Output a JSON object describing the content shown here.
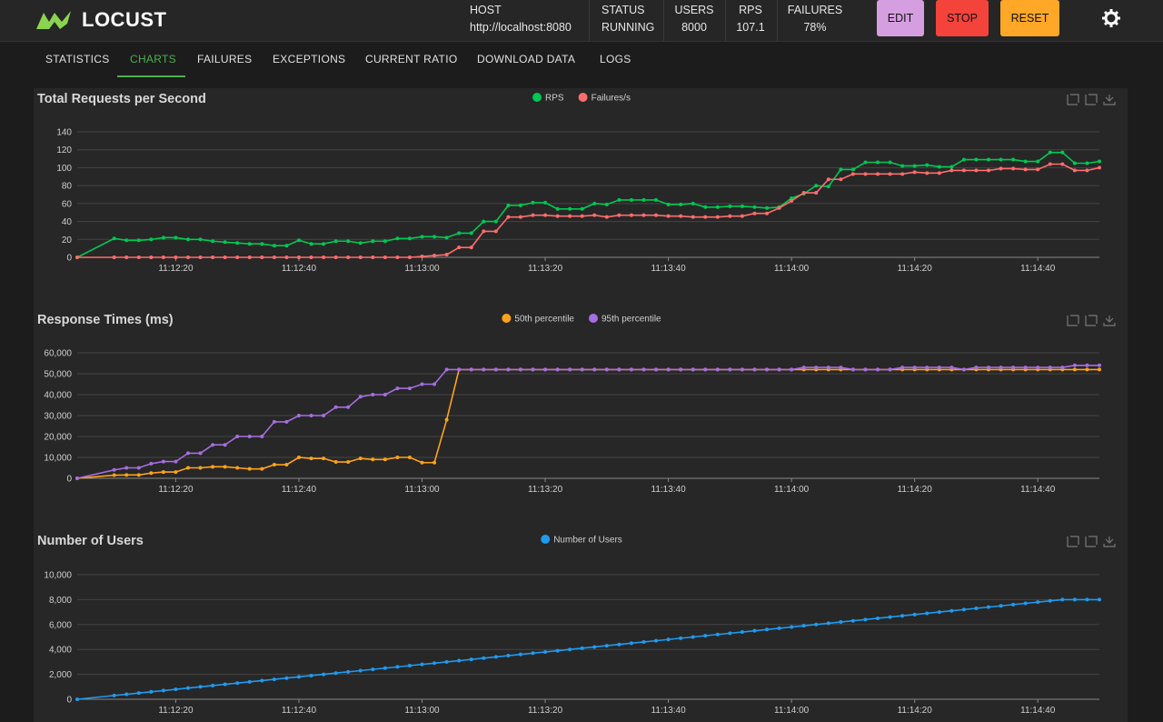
{
  "header": {
    "logo": "LOCUST",
    "stats": [
      {
        "label": "HOST",
        "value": "http://localhost:8080"
      },
      {
        "label": "STATUS",
        "value": "RUNNING"
      },
      {
        "label": "USERS",
        "value": "8000"
      },
      {
        "label": "RPS",
        "value": "107.1"
      },
      {
        "label": "FAILURES",
        "value": "78%"
      }
    ],
    "buttons": [
      {
        "label": "EDIT",
        "color": "#d59ee0"
      },
      {
        "label": "STOP",
        "color": "#f4433b"
      },
      {
        "label": "RESET",
        "color": "#ffa726"
      }
    ]
  },
  "tabs": [
    "STATISTICS",
    "CHARTS",
    "FAILURES",
    "EXCEPTIONS",
    "CURRENT RATIO",
    "DOWNLOAD DATA",
    "LOGS"
  ],
  "chart_data": [
    {
      "type": "line",
      "title": "Total Requests per Second",
      "legend": "top",
      "x": [
        "11:12:04",
        "11:12:10",
        "11:12:12",
        "11:12:14",
        "11:12:16",
        "11:12:18",
        "11:12:20",
        "11:12:22",
        "11:12:24",
        "11:12:26",
        "11:12:28",
        "11:12:30",
        "11:12:32",
        "11:12:34",
        "11:12:36",
        "11:12:38",
        "11:12:40",
        "11:12:42",
        "11:12:44",
        "11:12:46",
        "11:12:48",
        "11:12:50",
        "11:12:52",
        "11:12:54",
        "11:12:56",
        "11:12:58",
        "11:13:00",
        "11:13:02",
        "11:13:04",
        "11:13:06",
        "11:13:08",
        "11:13:10",
        "11:13:12",
        "11:13:14",
        "11:13:16",
        "11:13:18",
        "11:13:20",
        "11:13:22",
        "11:13:24",
        "11:13:26",
        "11:13:28",
        "11:13:30",
        "11:13:32",
        "11:13:34",
        "11:13:36",
        "11:13:38",
        "11:13:40",
        "11:13:42",
        "11:13:44",
        "11:13:46",
        "11:13:48",
        "11:13:50",
        "11:13:52",
        "11:13:54",
        "11:13:56",
        "11:13:58",
        "11:14:00",
        "11:14:02",
        "11:14:04",
        "11:14:06",
        "11:14:08",
        "11:14:10",
        "11:14:12",
        "11:14:14",
        "11:14:16",
        "11:14:18",
        "11:14:20",
        "11:14:22",
        "11:14:24",
        "11:14:26",
        "11:14:28",
        "11:14:30",
        "11:14:32",
        "11:14:34",
        "11:14:36",
        "11:14:38",
        "11:14:40",
        "11:14:42",
        "11:14:44",
        "11:14:46",
        "11:14:48",
        "11:14:50"
      ],
      "xlim": [
        "11:12:04",
        "11:14:50"
      ],
      "xticks": [
        "11:12:20",
        "11:12:40",
        "11:13:00",
        "11:13:20",
        "11:13:40",
        "11:14:00",
        "11:14:20",
        "11:14:40"
      ],
      "ylim": [
        0,
        140
      ],
      "yticks": [
        0,
        20,
        40,
        60,
        80,
        100,
        120,
        140
      ],
      "grid": true,
      "series": [
        {
          "name": "RPS",
          "color": "#00c853",
          "values": [
            0,
            21,
            19,
            19,
            20,
            22,
            22,
            20,
            20,
            18,
            17,
            16,
            15,
            15,
            13,
            13,
            19,
            15,
            15,
            18,
            18,
            16,
            18,
            18,
            21,
            21,
            23,
            23,
            22,
            27,
            27,
            40,
            40,
            58,
            58,
            61,
            61,
            54,
            54,
            54,
            60,
            59,
            64,
            64,
            64,
            64,
            59,
            59,
            60,
            56,
            56,
            57,
            57,
            56,
            55,
            56,
            66,
            71,
            80,
            79,
            98,
            98,
            106,
            106,
            106,
            102,
            102,
            103,
            101,
            101,
            109,
            109,
            109,
            109,
            109,
            107,
            107,
            117,
            117,
            105,
            105,
            107
          ]
        },
        {
          "name": "Failures/s",
          "color": "#ff6d6d",
          "values": [
            0,
            0,
            0,
            0,
            0,
            0,
            0,
            0,
            0,
            0,
            0,
            0,
            0,
            0,
            0,
            0,
            0,
            0,
            0,
            0,
            0,
            0,
            0,
            0,
            0,
            0,
            1,
            2,
            3,
            11,
            11,
            29,
            29,
            45,
            45,
            47,
            47,
            46,
            46,
            46,
            47,
            45,
            47,
            47,
            47,
            47,
            46,
            46,
            45,
            45,
            45,
            46,
            46,
            49,
            49,
            55,
            63,
            72,
            72,
            87,
            87,
            93,
            93,
            93,
            93,
            93,
            95,
            94,
            94,
            97,
            97,
            97,
            97,
            99,
            99,
            98,
            98,
            104,
            104,
            97,
            97,
            100
          ]
        }
      ]
    },
    {
      "type": "line",
      "title": "Response Times (ms)",
      "legend": "top",
      "x": [
        "11:12:04",
        "11:12:10",
        "11:12:12",
        "11:12:14",
        "11:12:16",
        "11:12:18",
        "11:12:20",
        "11:12:22",
        "11:12:24",
        "11:12:26",
        "11:12:28",
        "11:12:30",
        "11:12:32",
        "11:12:34",
        "11:12:36",
        "11:12:38",
        "11:12:40",
        "11:12:42",
        "11:12:44",
        "11:12:46",
        "11:12:48",
        "11:12:50",
        "11:12:52",
        "11:12:54",
        "11:12:56",
        "11:12:58",
        "11:13:00",
        "11:13:02",
        "11:13:04",
        "11:13:06",
        "11:13:08",
        "11:13:10",
        "11:13:12",
        "11:13:14",
        "11:13:16",
        "11:13:18",
        "11:13:20",
        "11:13:22",
        "11:13:24",
        "11:13:26",
        "11:13:28",
        "11:13:30",
        "11:13:32",
        "11:13:34",
        "11:13:36",
        "11:13:38",
        "11:13:40",
        "11:13:42",
        "11:13:44",
        "11:13:46",
        "11:13:48",
        "11:13:50",
        "11:13:52",
        "11:13:54",
        "11:13:56",
        "11:13:58",
        "11:14:00",
        "11:14:02",
        "11:14:04",
        "11:14:06",
        "11:14:08",
        "11:14:10",
        "11:14:12",
        "11:14:14",
        "11:14:16",
        "11:14:18",
        "11:14:20",
        "11:14:22",
        "11:14:24",
        "11:14:26",
        "11:14:28",
        "11:14:30",
        "11:14:32",
        "11:14:34",
        "11:14:36",
        "11:14:38",
        "11:14:40",
        "11:14:42",
        "11:14:44",
        "11:14:46",
        "11:14:48",
        "11:14:50"
      ],
      "xlim": [
        "11:12:04",
        "11:14:50"
      ],
      "xticks": [
        "11:12:20",
        "11:12:40",
        "11:13:00",
        "11:13:20",
        "11:13:40",
        "11:14:00",
        "11:14:20",
        "11:14:40"
      ],
      "ylim": [
        0,
        60000
      ],
      "yticks": [
        0,
        {
          "value": 10000,
          "label": "10,000"
        },
        {
          "value": 20000,
          "label": "20,000"
        },
        {
          "value": 30000,
          "label": "30,000"
        },
        {
          "value": 40000,
          "label": "40,000"
        },
        {
          "value": 50000,
          "label": "50,000"
        },
        {
          "value": 60000,
          "label": "60,000"
        }
      ],
      "grid": true,
      "series": [
        {
          "name": "50th percentile",
          "color": "#ffa31a",
          "values": [
            0,
            1500,
            1600,
            1600,
            2500,
            3000,
            3000,
            5000,
            5000,
            5500,
            5500,
            5000,
            4500,
            4500,
            6500,
            6500,
            10000,
            9500,
            9500,
            7800,
            7800,
            9500,
            9000,
            9000,
            10000,
            10000,
            7500,
            7500,
            28000,
            52000,
            52000,
            52000,
            52000,
            52000,
            52000,
            52000,
            52000,
            52000,
            52000,
            52000,
            52000,
            52000,
            52000,
            52000,
            52000,
            52000,
            52000,
            52000,
            52000,
            52000,
            52000,
            52000,
            52000,
            52000,
            52000,
            52000,
            52000,
            52000,
            52000,
            52000,
            52000,
            52000,
            52000,
            52000,
            52000,
            52000,
            52000,
            52000,
            52000,
            52000,
            52000,
            52000,
            52000,
            52000,
            52000,
            52000,
            52000,
            52000,
            52000,
            52000,
            52000,
            52000
          ]
        },
        {
          "name": "95th percentile",
          "color": "#a66ee0",
          "values": [
            0,
            4000,
            5000,
            5000,
            7000,
            8000,
            8000,
            12000,
            12000,
            16000,
            16000,
            20000,
            20000,
            20000,
            27000,
            27000,
            30000,
            30000,
            30000,
            34000,
            34000,
            39000,
            40000,
            40000,
            43000,
            43000,
            45000,
            45000,
            52000,
            52000,
            52000,
            52000,
            52000,
            52000,
            52000,
            52000,
            52000,
            52000,
            52000,
            52000,
            52000,
            52000,
            52000,
            52000,
            52000,
            52000,
            52000,
            52000,
            52000,
            52000,
            52000,
            52000,
            52000,
            52000,
            52000,
            52000,
            52000,
            53000,
            53000,
            53000,
            53000,
            52000,
            52000,
            52000,
            52000,
            53000,
            53000,
            53000,
            53000,
            53000,
            52000,
            53000,
            53000,
            53000,
            53000,
            53000,
            53000,
            53000,
            53000,
            54000,
            54000,
            54000
          ]
        }
      ]
    },
    {
      "type": "line",
      "title": "Number of Users",
      "legend": "top",
      "x": [
        "11:12:04",
        "11:12:10",
        "11:12:12",
        "11:12:14",
        "11:12:16",
        "11:12:18",
        "11:12:20",
        "11:12:22",
        "11:12:24",
        "11:12:26",
        "11:12:28",
        "11:12:30",
        "11:12:32",
        "11:12:34",
        "11:12:36",
        "11:12:38",
        "11:12:40",
        "11:12:42",
        "11:12:44",
        "11:12:46",
        "11:12:48",
        "11:12:50",
        "11:12:52",
        "11:12:54",
        "11:12:56",
        "11:12:58",
        "11:13:00",
        "11:13:02",
        "11:13:04",
        "11:13:06",
        "11:13:08",
        "11:13:10",
        "11:13:12",
        "11:13:14",
        "11:13:16",
        "11:13:18",
        "11:13:20",
        "11:13:22",
        "11:13:24",
        "11:13:26",
        "11:13:28",
        "11:13:30",
        "11:13:32",
        "11:13:34",
        "11:13:36",
        "11:13:38",
        "11:13:40",
        "11:13:42",
        "11:13:44",
        "11:13:46",
        "11:13:48",
        "11:13:50",
        "11:13:52",
        "11:13:54",
        "11:13:56",
        "11:13:58",
        "11:14:00",
        "11:14:02",
        "11:14:04",
        "11:14:06",
        "11:14:08",
        "11:14:10",
        "11:14:12",
        "11:14:14",
        "11:14:16",
        "11:14:18",
        "11:14:20",
        "11:14:22",
        "11:14:24",
        "11:14:26",
        "11:14:28",
        "11:14:30",
        "11:14:32",
        "11:14:34",
        "11:14:36",
        "11:14:38",
        "11:14:40",
        "11:14:42",
        "11:14:44",
        "11:14:46",
        "11:14:48",
        "11:14:50"
      ],
      "xlim": [
        "11:12:04",
        "11:14:50"
      ],
      "xticks": [
        "11:12:20",
        "11:12:40",
        "11:13:00",
        "11:13:20",
        "11:13:40",
        "11:14:00",
        "11:14:20",
        "11:14:40"
      ],
      "ylim": [
        0,
        10000
      ],
      "yticks": [
        0,
        {
          "value": 2000,
          "label": "2,000"
        },
        {
          "value": 4000,
          "label": "4,000"
        },
        {
          "value": 6000,
          "label": "6,000"
        },
        {
          "value": 8000,
          "label": "8,000"
        },
        {
          "value": 10000,
          "label": "10,000"
        }
      ],
      "grid": true,
      "series": [
        {
          "name": "Number of Users",
          "color": "#1e9bf0",
          "values": [
            0,
            300,
            400,
            500,
            600,
            700,
            800,
            900,
            1000,
            1100,
            1200,
            1300,
            1400,
            1500,
            1600,
            1700,
            1800,
            1900,
            2000,
            2100,
            2200,
            2300,
            2400,
            2500,
            2600,
            2700,
            2800,
            2900,
            3000,
            3100,
            3200,
            3300,
            3400,
            3500,
            3600,
            3700,
            3800,
            3900,
            4000,
            4100,
            4200,
            4300,
            4400,
            4500,
            4600,
            4700,
            4800,
            4900,
            5000,
            5100,
            5200,
            5300,
            5400,
            5500,
            5600,
            5700,
            5800,
            5900,
            6000,
            6100,
            6200,
            6300,
            6400,
            6500,
            6600,
            6700,
            6800,
            6900,
            7000,
            7100,
            7200,
            7300,
            7400,
            7500,
            7600,
            7700,
            7800,
            7900,
            8000,
            8000,
            8000,
            8000
          ]
        }
      ]
    }
  ]
}
